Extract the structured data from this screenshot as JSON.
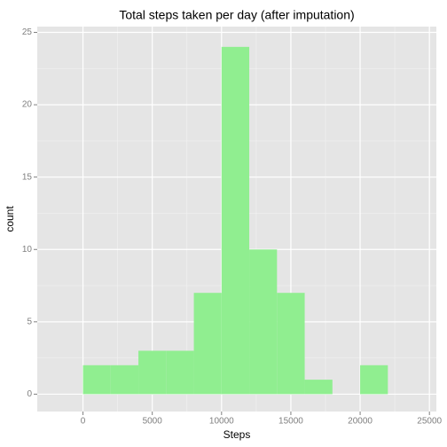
{
  "chart_data": {
    "type": "histogram",
    "title": "Total steps taken per day (after imputation)",
    "x_label": "Steps",
    "y_label": "count",
    "bins": [
      0,
      2000,
      4000,
      6000,
      8000,
      10000,
      12000,
      14000,
      16000,
      18000,
      20000,
      22000
    ],
    "values": [
      2,
      2,
      3,
      3,
      7,
      24,
      10,
      7,
      1,
      0,
      2
    ],
    "color": "#90ee90",
    "xlim": [
      -3300,
      25500
    ],
    "xticks": [
      0,
      5000,
      10000,
      15000,
      20000,
      25000
    ],
    "ylim": [
      -1.2,
      25.4
    ],
    "yticks": [
      0,
      5,
      10,
      15,
      20,
      25
    ],
    "grid": true
  }
}
